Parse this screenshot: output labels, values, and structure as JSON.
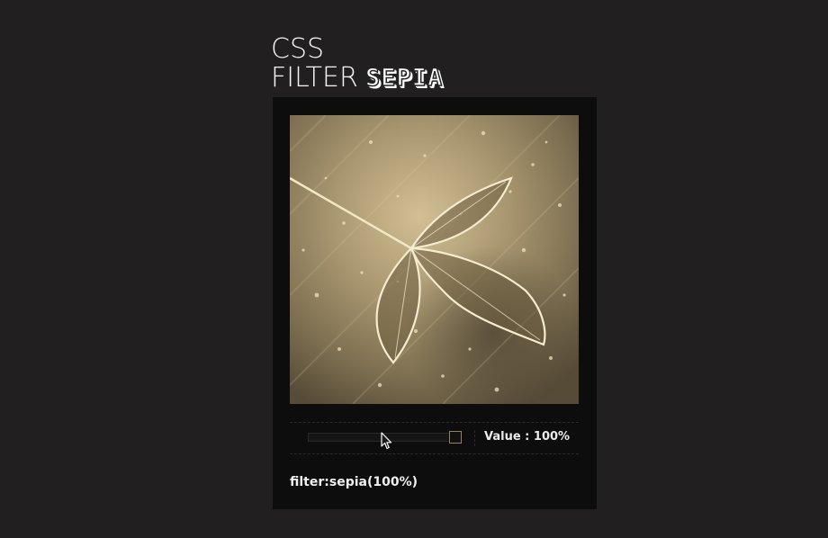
{
  "title": {
    "line1": "CSS",
    "line2": "FILTER",
    "highlight": "SEPIA"
  },
  "filter": {
    "name": "sepia",
    "value_percent": 100,
    "value_label": "Value : 100%",
    "code": "filter:sepia(100%)"
  },
  "image": {
    "subject": "leaf-with-water-droplets",
    "tint": "#a8976f"
  },
  "colors": {
    "background": "#221f20",
    "card": "#0e0d0d",
    "thumb_border": "#9a7d5c"
  }
}
